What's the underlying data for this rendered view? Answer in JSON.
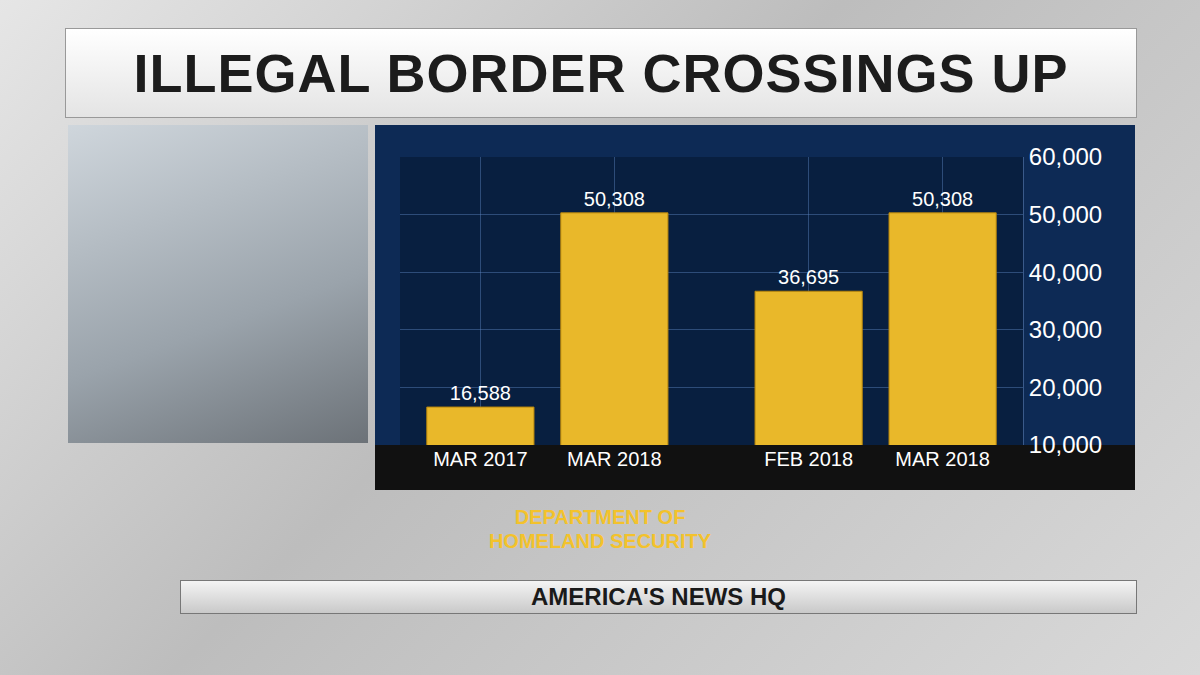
{
  "chart_data": {
    "type": "bar",
    "title": "ILLEGAL BORDER CROSSINGS UP",
    "categories": [
      "MAR 2017",
      "MAR 2018",
      "FEB 2018",
      "MAR 2018"
    ],
    "values": [
      16588,
      50308,
      36695,
      50308
    ],
    "value_labels": [
      "16,588",
      "50,308",
      "36,695",
      "50,308"
    ],
    "data_labels": true,
    "color": "#e9b82a",
    "ylim": [
      10000,
      60000
    ],
    "yticks": [
      {
        "value": 10000,
        "label": "10,000"
      },
      {
        "value": 20000,
        "label": "20,000"
      },
      {
        "value": 30000,
        "label": "30,000"
      },
      {
        "value": 40000,
        "label": "40,000"
      },
      {
        "value": 50000,
        "label": "50,000"
      },
      {
        "value": 60000,
        "label": "60,000"
      }
    ],
    "grid": true,
    "source": "DEPARTMENT OF HOMELAND SECURITY",
    "footer": "AMERICA'S NEWS HQ"
  }
}
